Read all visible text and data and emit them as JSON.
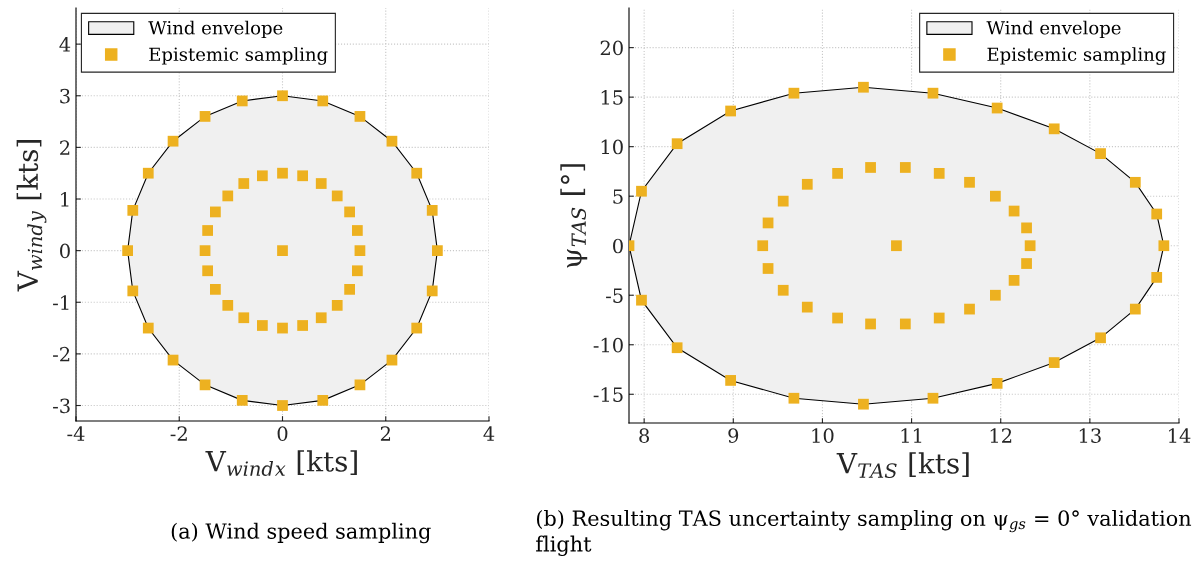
{
  "chart_data": [
    {
      "type": "scatter",
      "xlabel": "V$_{wind}$$_{x}$ [kts]",
      "ylabel": "V$_{wind}$$_{y}$ [kts]",
      "xlim": [
        -4,
        4
      ],
      "ylim": [
        -3.3,
        4.7
      ],
      "xticks": [
        -4,
        -2,
        0,
        2,
        4
      ],
      "yticks": [
        -3,
        -2,
        -1,
        0,
        1,
        2,
        3,
        4
      ],
      "grid": true,
      "legend": "top left",
      "annotations": [
        "(a) Wind speed sampling"
      ],
      "series": [
        {
          "name": "Wind envelope",
          "type": "area",
          "color": "#f0f0f0",
          "x": [
            3,
            2.9,
            2.6,
            2.12,
            1.5,
            0.78,
            0,
            -0.78,
            -1.5,
            -2.12,
            -2.6,
            -2.9,
            -3,
            -2.9,
            -2.6,
            -2.12,
            -1.5,
            -0.78,
            0,
            0.78,
            1.5,
            2.12,
            2.6,
            2.9
          ],
          "values": [
            0,
            0.78,
            1.5,
            2.12,
            2.6,
            2.9,
            3,
            2.9,
            2.6,
            2.12,
            1.5,
            0.78,
            0,
            -0.78,
            -1.5,
            -2.12,
            -2.6,
            -2.9,
            -3,
            -2.9,
            -2.6,
            -2.12,
            -1.5,
            -0.78
          ]
        },
        {
          "name": "Epistemic sampling",
          "marker": "square",
          "color": "#edb120",
          "x": [
            3,
            2.9,
            2.6,
            2.12,
            1.5,
            0.78,
            0,
            -0.78,
            -1.5,
            -2.12,
            -2.6,
            -2.9,
            -3,
            -2.9,
            -2.6,
            -2.12,
            -1.5,
            -0.78,
            0,
            0.78,
            1.5,
            2.12,
            2.6,
            2.9,
            1.5,
            1.45,
            1.3,
            1.06,
            0.75,
            0.39,
            0,
            -0.39,
            -0.75,
            -1.06,
            -1.3,
            -1.45,
            -1.5,
            -1.45,
            -1.3,
            -1.06,
            -0.75,
            -0.39,
            0,
            0.39,
            0.75,
            1.06,
            1.3,
            1.45,
            0
          ],
          "values": [
            0,
            0.78,
            1.5,
            2.12,
            2.6,
            2.9,
            3,
            2.9,
            2.6,
            2.12,
            1.5,
            0.78,
            0,
            -0.78,
            -1.5,
            -2.12,
            -2.6,
            -2.9,
            -3,
            -2.9,
            -2.6,
            -2.12,
            -1.5,
            -0.78,
            0,
            0.39,
            0.75,
            1.06,
            1.3,
            1.45,
            1.5,
            1.45,
            1.3,
            1.06,
            0.75,
            0.39,
            0,
            -0.39,
            -0.75,
            -1.06,
            -1.3,
            -1.45,
            -1.5,
            -1.45,
            -1.3,
            -1.06,
            -0.75,
            -0.39,
            0
          ]
        }
      ]
    },
    {
      "type": "scatter",
      "xlabel": "V$_{TAS}$ [kts]",
      "ylabel": "ψ$_{TAS}$ [°]",
      "xlim": [
        7.83,
        14
      ],
      "ylim": [
        -17.9,
        24
      ],
      "xticks": [
        8,
        9,
        10,
        11,
        12,
        13,
        14
      ],
      "yticks": [
        -15,
        -10,
        -5,
        0,
        5,
        10,
        15,
        20
      ],
      "grid": true,
      "legend": "top right",
      "annotations": [
        "(b) Resulting TAS uncertainty sampling on ψ$_{gs}$ = 0° validation flight"
      ],
      "series": [
        {
          "name": "Wind envelope",
          "type": "area",
          "color": "#f0f0f0",
          "x": [
            7.83,
            7.97,
            8.37,
            8.97,
            9.68,
            10.46,
            11.24,
            11.96,
            12.6,
            13.12,
            13.51,
            13.75,
            13.83,
            13.75,
            13.51,
            13.12,
            12.6,
            11.96,
            11.24,
            10.46,
            9.68,
            8.97,
            8.37,
            7.97
          ],
          "values": [
            0,
            5.5,
            10.3,
            13.6,
            15.4,
            16,
            15.4,
            13.9,
            11.8,
            9.3,
            6.4,
            3.2,
            0,
            -3.2,
            -6.4,
            -9.3,
            -11.8,
            -13.9,
            -15.4,
            -16,
            -15.4,
            -13.6,
            -10.3,
            -5.5
          ]
        },
        {
          "name": "Epistemic sampling",
          "marker": "square",
          "color": "#edb120",
          "x": [
            7.83,
            7.97,
            8.37,
            8.97,
            9.68,
            10.46,
            11.24,
            11.96,
            12.6,
            13.12,
            13.51,
            13.75,
            13.83,
            13.75,
            13.51,
            13.12,
            12.6,
            11.96,
            11.24,
            10.46,
            9.68,
            8.97,
            8.37,
            7.97,
            9.33,
            9.39,
            9.56,
            9.83,
            10.17,
            10.54,
            10.93,
            11.31,
            11.65,
            11.94,
            12.15,
            12.29,
            12.33,
            12.29,
            12.15,
            11.94,
            11.65,
            11.31,
            10.93,
            10.54,
            10.17,
            9.83,
            9.56,
            9.39,
            10.83
          ],
          "values": [
            0,
            5.5,
            10.3,
            13.6,
            15.4,
            16,
            15.4,
            13.9,
            11.8,
            9.3,
            6.4,
            3.2,
            0,
            -3.2,
            -6.4,
            -9.3,
            -11.8,
            -13.9,
            -15.4,
            -16,
            -15.4,
            -13.6,
            -10.3,
            -5.5,
            0,
            2.3,
            4.5,
            6.2,
            7.3,
            7.9,
            7.9,
            7.3,
            6.4,
            5,
            3.5,
            1.8,
            0,
            -1.8,
            -3.5,
            -5,
            -6.4,
            -7.3,
            -7.9,
            -7.9,
            -7.3,
            -6.2,
            -4.5,
            -2.3,
            0
          ]
        }
      ]
    }
  ]
}
